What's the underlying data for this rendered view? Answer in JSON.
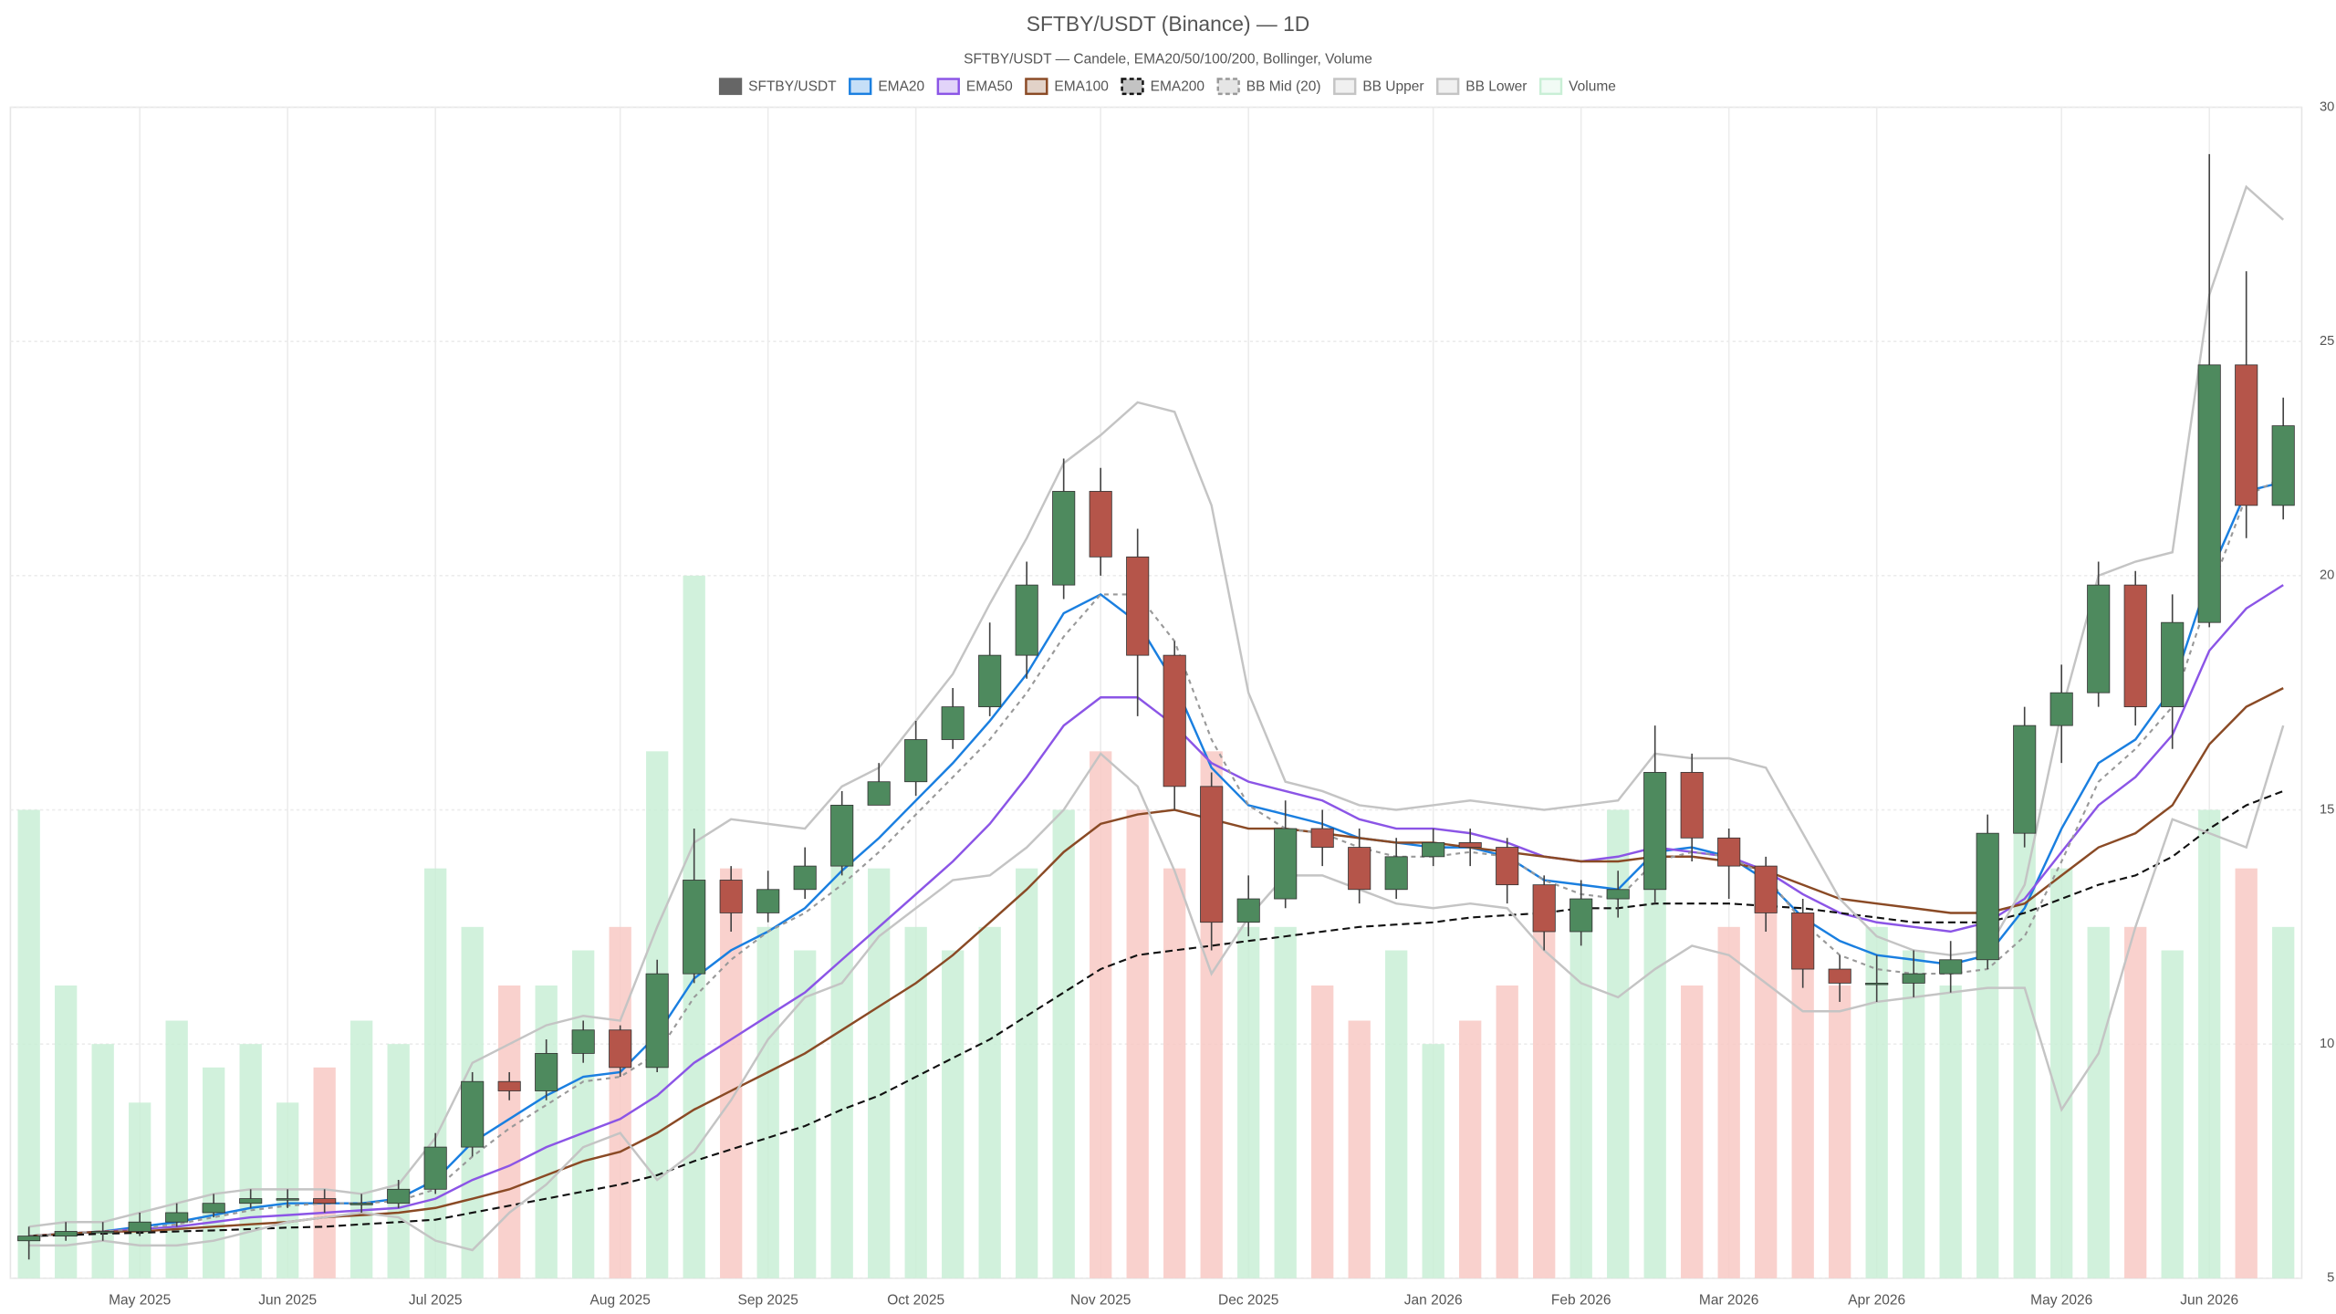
{
  "chart_data": {
    "type": "candlestick",
    "title": "SFTBY/USDT (Binance) — 1D",
    "subtitle": "SFTBY/USDT — Candele, EMA20/50/100/200, Bollinger, Volume",
    "categories": [
      null,
      null,
      null,
      "May 2025",
      null,
      null,
      null,
      "Jun 2025",
      null,
      null,
      null,
      "Jul 2025",
      null,
      null,
      null,
      null,
      "Aug 2025",
      null,
      null,
      null,
      "Sep 2025",
      null,
      null,
      null,
      "Oct 2025",
      null,
      null,
      null,
      null,
      "Nov 2025",
      null,
      null,
      null,
      "Dec 2025",
      null,
      null,
      null,
      null,
      "Jan 2026",
      null,
      null,
      null,
      "Feb 2026",
      null,
      null,
      null,
      "Mar 2026",
      null,
      null,
      null,
      "Apr 2026",
      null,
      null,
      null,
      null,
      "May 2026",
      null,
      null,
      null,
      "Jun 2026",
      null,
      null
    ],
    "ylim": [
      5,
      30
    ],
    "yticks": [
      5,
      10,
      15,
      20,
      25,
      30
    ],
    "y2lim": [
      0,
      100
    ],
    "grid": true,
    "series": [
      {
        "name": "SFTBY/USDT",
        "color": "#666666",
        "up_color": "#4e8a5e",
        "down_color": "#b5554a",
        "open": [
          5.8,
          5.9,
          6.0,
          6.0,
          6.2,
          6.4,
          6.6,
          6.7,
          6.7,
          6.6,
          6.6,
          6.9,
          7.8,
          9.2,
          9.0,
          9.8,
          10.3,
          9.5,
          11.5,
          13.5,
          12.8,
          13.3,
          13.8,
          15.1,
          15.6,
          16.5,
          17.2,
          18.3,
          19.8,
          21.8,
          20.4,
          18.3,
          15.5,
          12.6,
          13.1,
          14.6,
          14.2,
          13.3,
          14.0,
          14.3,
          14.2,
          13.4,
          12.4,
          13.1,
          13.3,
          15.8,
          14.4,
          13.8,
          12.8,
          11.6,
          11.3,
          11.3,
          11.5,
          11.8,
          14.5,
          16.8,
          17.5,
          19.8,
          17.2,
          19.0,
          24.5,
          21.5
        ],
        "high": [
          6.1,
          6.2,
          6.2,
          6.4,
          6.6,
          6.8,
          6.9,
          6.9,
          6.9,
          6.8,
          7.1,
          8.1,
          9.4,
          9.4,
          10.1,
          10.5,
          10.4,
          11.8,
          14.6,
          13.8,
          13.7,
          14.2,
          15.4,
          16.0,
          16.9,
          17.6,
          19.0,
          20.3,
          22.5,
          22.3,
          21.0,
          18.6,
          15.8,
          13.6,
          15.2,
          15.0,
          14.6,
          14.4,
          14.6,
          14.6,
          14.4,
          13.6,
          13.5,
          13.7,
          16.8,
          16.2,
          14.6,
          14.0,
          13.1,
          11.9,
          11.9,
          12.0,
          12.2,
          14.9,
          17.2,
          18.1,
          20.3,
          20.1,
          19.6,
          29.0,
          26.5,
          23.8
        ],
        "low": [
          5.4,
          5.8,
          5.8,
          5.9,
          6.1,
          6.3,
          6.5,
          6.5,
          6.4,
          6.4,
          6.5,
          6.8,
          7.6,
          8.8,
          8.8,
          9.6,
          9.3,
          9.4,
          11.3,
          12.4,
          12.6,
          13.1,
          13.6,
          15.2,
          15.3,
          16.3,
          17.0,
          17.8,
          19.5,
          20.0,
          17.0,
          15.0,
          12.0,
          12.3,
          12.9,
          13.8,
          13.0,
          13.1,
          13.8,
          13.8,
          13.0,
          12.0,
          12.1,
          12.7,
          13.0,
          13.9,
          13.1,
          12.4,
          11.2,
          10.9,
          10.9,
          11.0,
          11.1,
          11.6,
          14.2,
          16.0,
          17.2,
          16.8,
          16.3,
          18.9,
          20.8,
          21.2
        ],
        "close": [
          5.9,
          6.0,
          6.0,
          6.2,
          6.4,
          6.6,
          6.7,
          6.7,
          6.6,
          6.6,
          6.9,
          7.8,
          9.2,
          9.0,
          9.8,
          10.3,
          9.5,
          11.5,
          13.5,
          12.8,
          13.3,
          13.8,
          15.1,
          15.6,
          16.5,
          17.2,
          18.3,
          19.8,
          21.8,
          20.4,
          18.3,
          15.5,
          12.6,
          13.1,
          14.6,
          14.2,
          13.3,
          14.0,
          14.3,
          14.2,
          13.4,
          12.4,
          13.1,
          13.3,
          15.8,
          14.4,
          13.8,
          12.8,
          11.6,
          11.3,
          11.3,
          11.5,
          11.8,
          14.5,
          16.8,
          17.5,
          19.8,
          17.2,
          19.0,
          24.5,
          21.5,
          23.2
        ]
      },
      {
        "name": "EMA20",
        "color": "#1a7fe0",
        "values": [
          5.9,
          5.95,
          6.0,
          6.1,
          6.2,
          6.35,
          6.5,
          6.6,
          6.6,
          6.6,
          6.7,
          7.1,
          7.9,
          8.4,
          8.9,
          9.3,
          9.4,
          10.2,
          11.4,
          12.0,
          12.4,
          12.9,
          13.7,
          14.4,
          15.2,
          16.0,
          16.9,
          17.9,
          19.2,
          19.6,
          19.0,
          17.7,
          15.9,
          15.1,
          14.9,
          14.7,
          14.4,
          14.3,
          14.2,
          14.2,
          14.0,
          13.5,
          13.4,
          13.3,
          14.1,
          14.2,
          14.0,
          13.5,
          12.7,
          12.2,
          11.9,
          11.8,
          11.7,
          11.9,
          12.9,
          14.6,
          16.0,
          16.5,
          17.6,
          20.0,
          21.8,
          22.0
        ]
      },
      {
        "name": "EMA50",
        "color": "#8b55e6",
        "values": [
          5.9,
          5.95,
          6.0,
          6.05,
          6.1,
          6.2,
          6.3,
          6.35,
          6.4,
          6.45,
          6.5,
          6.7,
          7.1,
          7.4,
          7.8,
          8.1,
          8.4,
          8.9,
          9.6,
          10.1,
          10.6,
          11.1,
          11.8,
          12.5,
          13.2,
          13.9,
          14.7,
          15.7,
          16.8,
          17.4,
          17.4,
          16.8,
          16.0,
          15.6,
          15.4,
          15.2,
          14.8,
          14.6,
          14.6,
          14.5,
          14.3,
          14.0,
          13.9,
          14.0,
          14.2,
          14.1,
          14.0,
          13.7,
          13.2,
          12.8,
          12.6,
          12.5,
          12.4,
          12.6,
          13.1,
          14.1,
          15.1,
          15.7,
          16.6,
          18.4,
          19.3,
          19.8
        ]
      },
      {
        "name": "EMA100",
        "color": "#8a4a25",
        "values": [
          5.9,
          5.95,
          6.0,
          6.0,
          6.05,
          6.1,
          6.15,
          6.2,
          6.3,
          6.35,
          6.4,
          6.5,
          6.7,
          6.9,
          7.2,
          7.5,
          7.7,
          8.1,
          8.6,
          9.0,
          9.4,
          9.8,
          10.3,
          10.8,
          11.3,
          11.9,
          12.6,
          13.3,
          14.1,
          14.7,
          14.9,
          15.0,
          14.8,
          14.6,
          14.6,
          14.5,
          14.4,
          14.3,
          14.3,
          14.2,
          14.1,
          14.0,
          13.9,
          13.9,
          14.0,
          14.0,
          13.9,
          13.7,
          13.4,
          13.1,
          13.0,
          12.9,
          12.8,
          12.8,
          13.0,
          13.6,
          14.2,
          14.5,
          15.1,
          16.4,
          17.2,
          17.6
        ]
      },
      {
        "name": "EMA200",
        "color": "#111111",
        "dash": "5 3",
        "values": [
          5.9,
          5.92,
          5.95,
          5.97,
          6.0,
          6.02,
          6.05,
          6.08,
          6.1,
          6.15,
          6.2,
          6.25,
          6.4,
          6.55,
          6.7,
          6.85,
          7.0,
          7.2,
          7.5,
          7.75,
          8.0,
          8.25,
          8.6,
          8.9,
          9.3,
          9.7,
          10.1,
          10.6,
          11.1,
          11.6,
          11.9,
          12.0,
          12.1,
          12.2,
          12.3,
          12.4,
          12.5,
          12.55,
          12.6,
          12.7,
          12.75,
          12.8,
          12.9,
          12.9,
          13.0,
          13.0,
          13.0,
          12.95,
          12.9,
          12.8,
          12.7,
          12.6,
          12.6,
          12.6,
          12.8,
          13.1,
          13.4,
          13.6,
          14.0,
          14.6,
          15.1,
          15.4
        ]
      },
      {
        "name": "BB Mid (20)",
        "color": "#999999",
        "dash": "3 3",
        "values": [
          5.9,
          5.95,
          6.0,
          6.05,
          6.15,
          6.3,
          6.45,
          6.55,
          6.6,
          6.6,
          6.65,
          6.9,
          7.6,
          8.2,
          8.7,
          9.2,
          9.3,
          9.8,
          11.0,
          11.8,
          12.4,
          12.8,
          13.4,
          14.1,
          14.9,
          15.7,
          16.5,
          17.5,
          18.7,
          19.6,
          19.6,
          18.6,
          16.5,
          15.1,
          14.6,
          14.5,
          14.2,
          14.0,
          14.0,
          14.1,
          14.0,
          13.5,
          13.2,
          13.1,
          13.9,
          14.1,
          14.0,
          13.6,
          12.6,
          11.9,
          11.6,
          11.5,
          11.5,
          11.6,
          12.3,
          13.9,
          15.6,
          16.3,
          17.2,
          19.6,
          21.7,
          22.1
        ]
      },
      {
        "name": "BB Upper",
        "color": "#c4c4c4",
        "values": [
          6.1,
          6.2,
          6.2,
          6.4,
          6.6,
          6.8,
          6.9,
          6.9,
          6.9,
          6.8,
          7.0,
          8.0,
          9.6,
          10.0,
          10.4,
          10.6,
          10.5,
          12.5,
          14.3,
          14.8,
          14.7,
          14.6,
          15.5,
          15.9,
          16.9,
          17.9,
          19.4,
          20.8,
          22.4,
          23.0,
          23.7,
          23.5,
          21.5,
          17.5,
          15.6,
          15.4,
          15.1,
          15.0,
          15.1,
          15.2,
          15.1,
          15.0,
          15.1,
          15.2,
          16.2,
          16.1,
          16.1,
          15.9,
          14.5,
          13.1,
          12.3,
          12.0,
          11.9,
          12.0,
          13.4,
          17.1,
          20.0,
          20.3,
          20.5,
          26.0,
          28.3,
          27.6
        ]
      },
      {
        "name": "BB Lower",
        "color": "#c4c4c4",
        "values": [
          5.7,
          5.7,
          5.8,
          5.7,
          5.7,
          5.8,
          6.0,
          6.2,
          6.3,
          6.4,
          6.3,
          5.8,
          5.6,
          6.4,
          7.0,
          7.8,
          8.1,
          7.1,
          7.7,
          8.8,
          10.1,
          11.0,
          11.3,
          12.3,
          12.9,
          13.5,
          13.6,
          14.2,
          15.0,
          16.2,
          15.5,
          13.7,
          11.5,
          12.7,
          13.6,
          13.6,
          13.3,
          13.0,
          12.9,
          13.0,
          12.9,
          12.0,
          11.3,
          11.0,
          11.6,
          12.1,
          11.9,
          11.3,
          10.7,
          10.7,
          10.9,
          11.0,
          11.1,
          11.2,
          11.2,
          8.6,
          9.8,
          12.5,
          14.8,
          14.5,
          14.2,
          16.8
        ]
      },
      {
        "name": "Volume",
        "color": "#c9efd6",
        "down_color": "#f8c9c4",
        "axis": "y2",
        "values": [
          40,
          25,
          20,
          15,
          22,
          18,
          20,
          15,
          18,
          22,
          20,
          35,
          30,
          25,
          25,
          28,
          30,
          45,
          60,
          35,
          30,
          28,
          40,
          35,
          30,
          28,
          30,
          35,
          40,
          45,
          40,
          35,
          45,
          30,
          30,
          25,
          22,
          28,
          20,
          22,
          25,
          30,
          30,
          40,
          35,
          25,
          30,
          35,
          30,
          25,
          30,
          28,
          25,
          35,
          40,
          35,
          30,
          30,
          28,
          40,
          35,
          30
        ]
      }
    ]
  }
}
